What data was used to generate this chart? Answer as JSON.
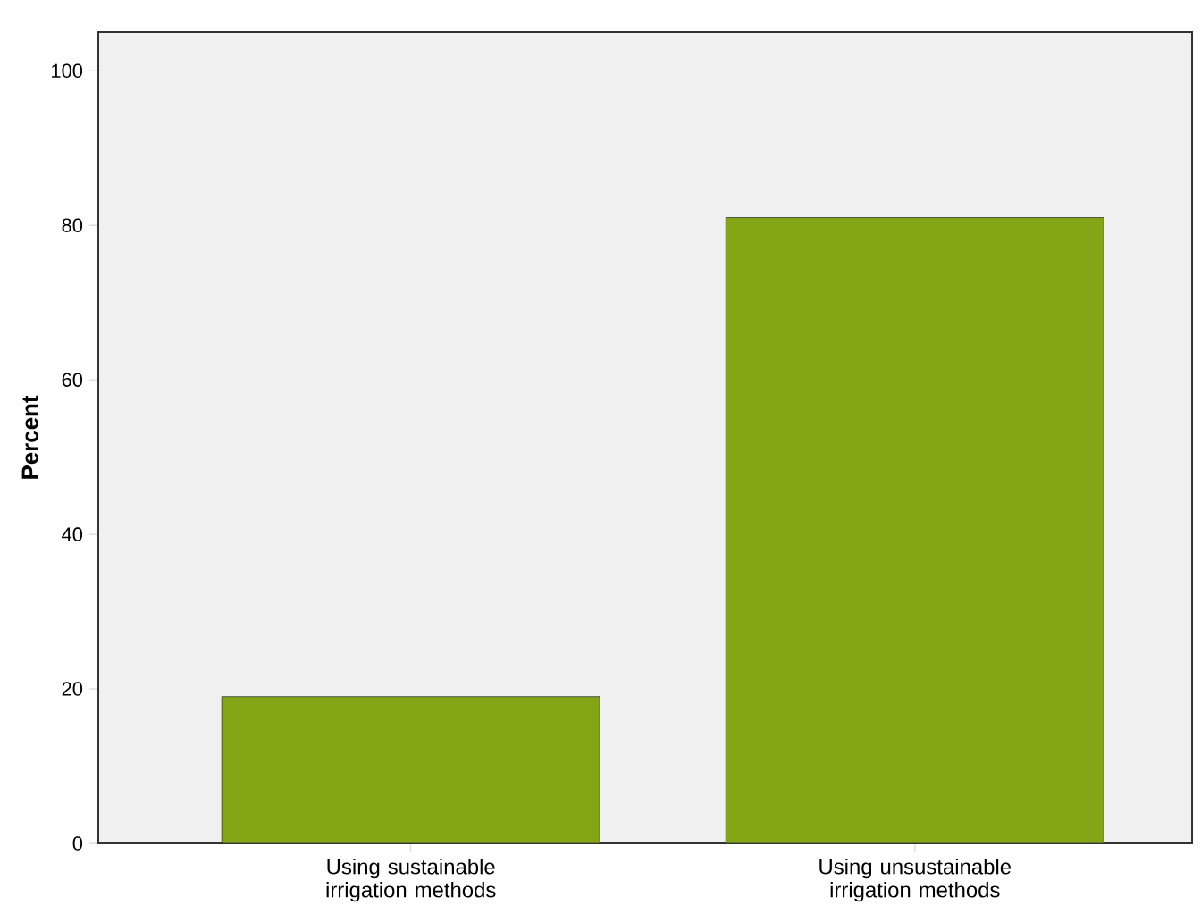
{
  "chart_data": {
    "type": "bar",
    "ylabel": "Percent",
    "categories": [
      "Using sustainable irrigation methods",
      "Using unsustainable irrigation methods"
    ],
    "values": [
      19,
      81
    ],
    "color": "#84a516",
    "ylim": [
      0,
      105
    ],
    "yticks": [
      0,
      20,
      40,
      60,
      80,
      100
    ],
    "grid": false
  }
}
